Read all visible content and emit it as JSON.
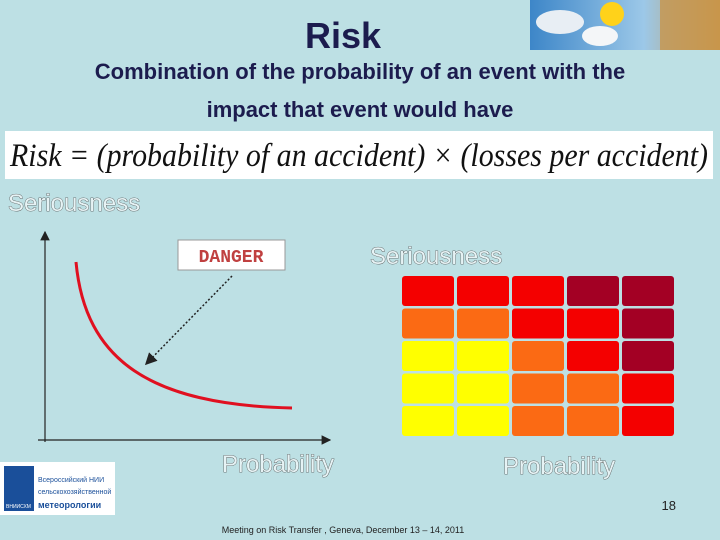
{
  "header": {
    "title": "Risk",
    "subtitle_lines": [
      "Combination of the probability of an event with the",
      "impact that event would have"
    ]
  },
  "formula": "Risk = (probability of an accident) × (losses per accident)",
  "left_graph": {
    "y_label": "Seriousness",
    "x_label": "Probability",
    "annotation": "DANGER"
  },
  "matrix": {
    "y_label": "Seriousness",
    "x_label": "Probability"
  },
  "logo": {
    "lines": [
      "Всероссийский НИИ",
      "сельскохозяйственной",
      "метеорологии"
    ],
    "abbr": "ВНИИСХМ"
  },
  "footer": {
    "page_number": "18",
    "text": "Meeting on Risk Transfer , Geneva, December 13 – 14, 2011"
  }
}
